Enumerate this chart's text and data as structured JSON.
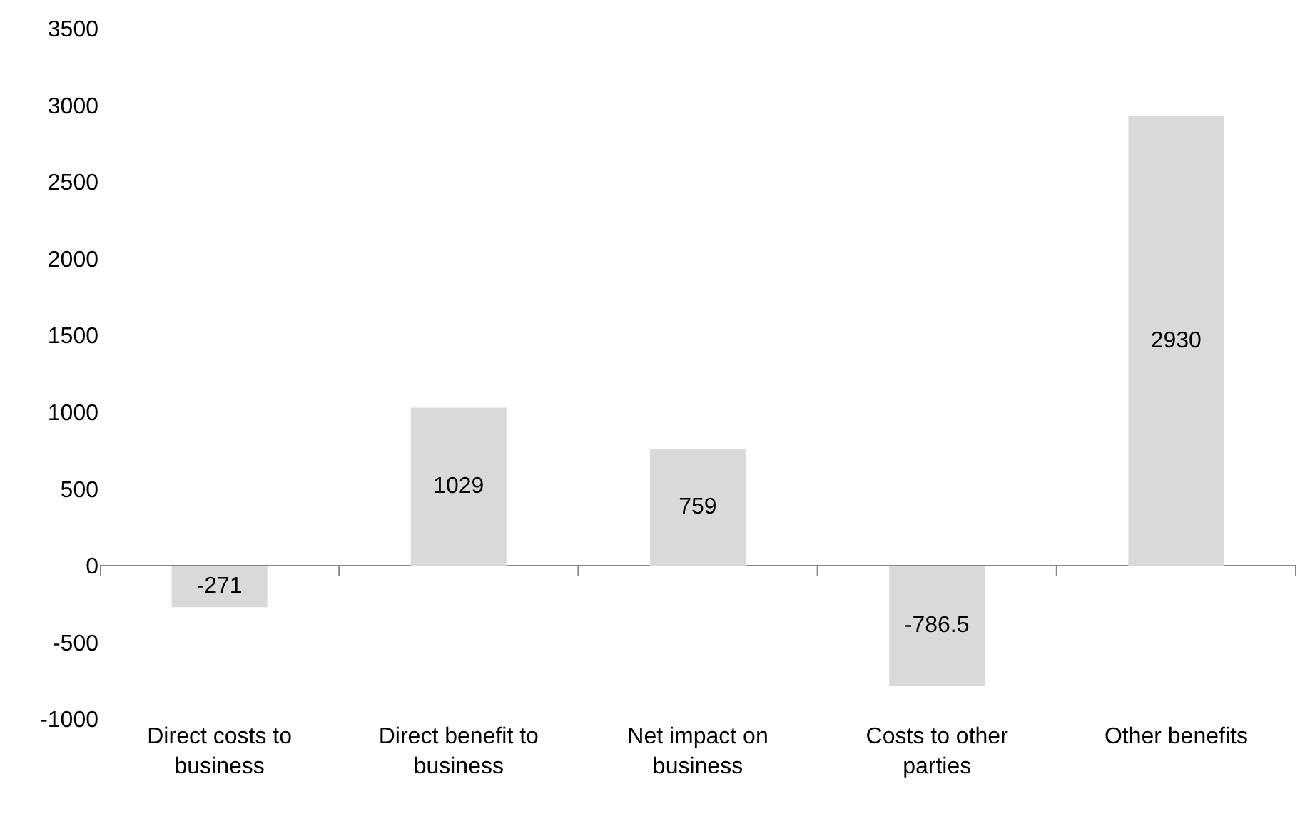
{
  "chart_data": {
    "type": "bar",
    "categories": [
      "Direct costs to business",
      "Direct benefit to business",
      "Net impact on business",
      "Costs to other parties",
      "Other benefits"
    ],
    "values": [
      -271,
      1029,
      759,
      -786.5,
      2930
    ],
    "color": "#d9d9d9",
    "ylim": [
      -1000,
      3500
    ],
    "yticks": [
      -1000,
      -500,
      0,
      500,
      1000,
      1500,
      2000,
      2500,
      3000,
      3500
    ],
    "data_labels": true
  }
}
